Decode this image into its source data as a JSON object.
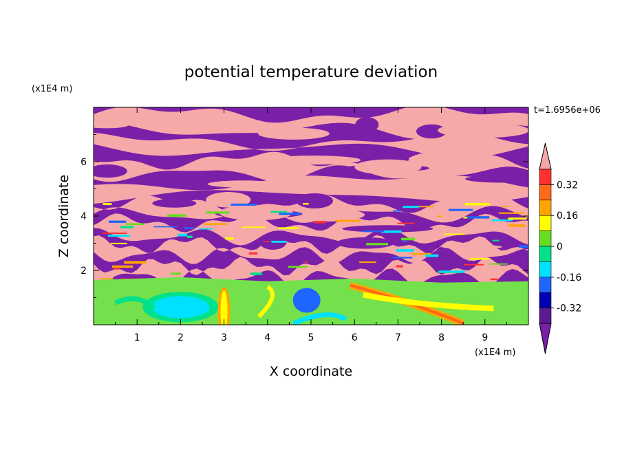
{
  "chart_data": {
    "type": "heatmap",
    "title": "potential temperature deviation",
    "xlabel": "X coordinate",
    "ylabel": "Z coordinate",
    "x_unit": "(x1E4 m)",
    "y_unit": "(x1E4 m)",
    "time_label": "t=1.6956e+06",
    "xlim": [
      0,
      10
    ],
    "ylim": [
      0,
      8
    ],
    "x_ticks": [
      "1",
      "2",
      "3",
      "4",
      "5",
      "6",
      "7",
      "8",
      "9"
    ],
    "y_ticks": [
      "2",
      "4",
      "6"
    ],
    "colorbar": {
      "labels": [
        "0.32",
        "0.16",
        "0",
        "-0.16",
        "-0.32"
      ],
      "levels": [
        -0.4,
        -0.32,
        -0.24,
        -0.16,
        -0.08,
        0,
        0.08,
        0.16,
        0.24,
        0.32,
        0.4
      ],
      "colors": [
        "#f4a6a6",
        "#ff3030",
        "#ff6a1a",
        "#ffa500",
        "#ffff00",
        "#66dd22",
        "#00e28a",
        "#00e0ff",
        "#1e66ff",
        "#0000b0",
        "#5b1a8f",
        "#7a1fa8"
      ]
    },
    "field_description_colors": {
      "upper_positive": "#f7a8a8",
      "upper_negative": "#7a1fa8",
      "lower_mean": "#74e04b"
    },
    "grid": false
  }
}
